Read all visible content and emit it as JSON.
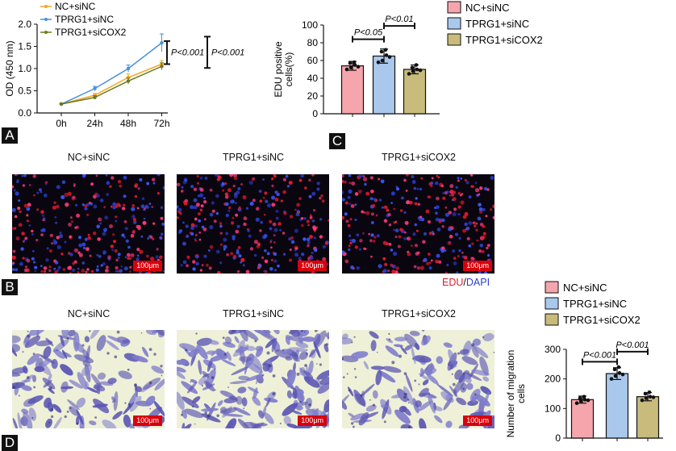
{
  "panels": {
    "A": "A",
    "B": "B",
    "C": "C",
    "D": "D"
  },
  "colors": {
    "nc": "#f5a623",
    "tprg1": "#4a90d9",
    "tprg1_sicox2": "#6b7a1f",
    "bar_nc": "#f6a5ad",
    "bar_tprg1": "#a9c8ec",
    "bar_sicox2": "#c8bb7c",
    "edu": "#e0192b",
    "dapi": "#2b3ccf",
    "scalebar": "#d8000c"
  },
  "chart_data": [
    {
      "type": "line",
      "panel": "A",
      "title": "",
      "xlabel": "",
      "ylabel": "OD (450 nm)",
      "categories": [
        "0h",
        "24h",
        "48h",
        "72h"
      ],
      "ylim": [
        0,
        2.0
      ],
      "yticks": [
        "0.0",
        "0.5",
        "1.0",
        "1.5",
        "2.0"
      ],
      "legend_position": "top-left",
      "series": [
        {
          "name": "NC+siNC",
          "values": [
            0.2,
            0.4,
            0.8,
            1.1
          ],
          "errors": [
            0.02,
            0.04,
            0.08,
            0.08
          ]
        },
        {
          "name": "TPRG1+siNC",
          "values": [
            0.2,
            0.55,
            1.0,
            1.58
          ],
          "errors": [
            0.02,
            0.05,
            0.08,
            0.2
          ]
        },
        {
          "name": "TPRG1+siCOX2",
          "values": [
            0.2,
            0.35,
            0.72,
            1.05
          ],
          "errors": [
            0.02,
            0.04,
            0.07,
            0.08
          ]
        }
      ],
      "annotations": [
        "P<0.001",
        "P<0.001"
      ]
    },
    {
      "type": "bar",
      "panel": "C",
      "title": "",
      "xlabel": "",
      "ylabel": "EDU positive cells(%)",
      "categories": [
        "NC+siNC",
        "TPRG1+siNC",
        "TPRG1+siCOX2"
      ],
      "values": [
        54,
        65,
        50
      ],
      "errors": [
        5,
        8,
        5
      ],
      "points": [
        [
          50,
          52,
          55,
          57,
          58,
          53
        ],
        [
          58,
          60,
          66,
          70,
          72,
          64
        ],
        [
          45,
          48,
          50,
          52,
          55,
          49
        ]
      ],
      "ylim": [
        0,
        100
      ],
      "yticks": [
        "0",
        "20",
        "40",
        "60",
        "80",
        "100"
      ],
      "legend_position": "top-right",
      "annotations": [
        "P<0.05",
        "P<0.01"
      ]
    },
    {
      "type": "bar",
      "panel": "D",
      "title": "",
      "xlabel": "",
      "ylabel": "Number of migration cells",
      "categories": [
        "NC+siNC",
        "TPRG1+siNC",
        "TPRG1+siCOX2"
      ],
      "values": [
        130,
        218,
        140
      ],
      "errors": [
        12,
        20,
        14
      ],
      "points": [
        [
          118,
          125,
          130,
          135,
          140,
          128
        ],
        [
          200,
          210,
          220,
          232,
          240,
          215
        ],
        [
          128,
          135,
          140,
          150,
          155,
          138
        ]
      ],
      "ylim": [
        0,
        300
      ],
      "yticks": [
        "0",
        "100",
        "200",
        "300"
      ],
      "legend_position": "top",
      "annotations": [
        "P<0.001",
        "P<0.001"
      ]
    }
  ],
  "legend": {
    "items": [
      "NC+siNC",
      "TPRG1+siNC",
      "TPRG1+siCOX2"
    ]
  },
  "panelB": {
    "titles": [
      "NC+siNC",
      "TPRG1+siNC",
      "TPRG1+siCOX2"
    ],
    "scalebar": "100μm",
    "stain_edu": "EDU",
    "stain_sep": "/",
    "stain_dapi": "DAPI"
  },
  "panelD": {
    "titles": [
      "NC+siNC",
      "TPRG1+siNC",
      "TPRG1+siCOX2"
    ],
    "scalebar": "100μm"
  }
}
